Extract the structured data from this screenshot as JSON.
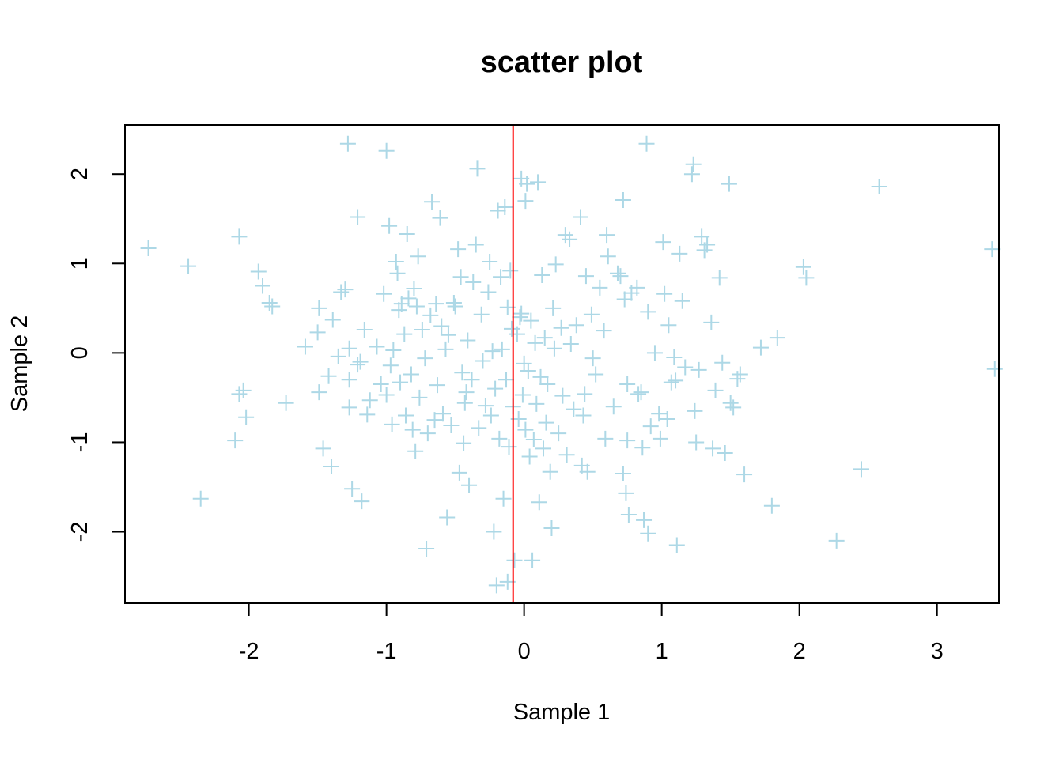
{
  "chart_data": {
    "type": "scatter",
    "title": "scatter plot",
    "xlabel": "Sample 1",
    "ylabel": "Sample 2",
    "xlim": [
      -2.9,
      3.45
    ],
    "ylim": [
      -2.8,
      2.55
    ],
    "x_ticks": [
      -2,
      -1,
      0,
      1,
      2,
      3
    ],
    "x_tick_labels": [
      "-2",
      "-1",
      "0",
      "1",
      "2",
      "3"
    ],
    "y_ticks": [
      -2,
      -1,
      0,
      1,
      2
    ],
    "y_tick_labels": [
      "-2",
      "-1",
      "0",
      "1",
      "2"
    ],
    "marker": "plus",
    "point_color": "#add8e6",
    "vline": {
      "x": -0.08,
      "color": "#ff0000"
    },
    "grid": false,
    "legend": "none",
    "points": [
      [
        -2.73,
        1.17
      ],
      [
        -2.44,
        0.97
      ],
      [
        -2.35,
        -1.63
      ],
      [
        -2.07,
        1.3
      ],
      [
        -2.1,
        -0.98
      ],
      [
        -2.04,
        -0.42
      ],
      [
        -2.07,
        -0.46
      ],
      [
        -2.02,
        -0.72
      ],
      [
        -1.93,
        0.91
      ],
      [
        -1.9,
        0.75
      ],
      [
        -1.85,
        0.56
      ],
      [
        -1.83,
        0.52
      ],
      [
        -1.73,
        -0.56
      ],
      [
        -1.59,
        0.07
      ],
      [
        -1.5,
        0.23
      ],
      [
        -1.49,
        0.5
      ],
      [
        -1.49,
        -0.44
      ],
      [
        -1.46,
        -1.07
      ],
      [
        -1.42,
        -0.26
      ],
      [
        -1.4,
        -1.27
      ],
      [
        -1.39,
        0.37
      ],
      [
        -1.35,
        -0.04
      ],
      [
        -1.33,
        0.68
      ],
      [
        -1.3,
        0.71
      ],
      [
        -1.28,
        2.34
      ],
      [
        -1.27,
        -0.3
      ],
      [
        -1.27,
        0.05
      ],
      [
        -1.27,
        -0.61
      ],
      [
        -1.25,
        -1.52
      ],
      [
        -1.21,
        1.52
      ],
      [
        -1.21,
        -0.13
      ],
      [
        -1.19,
        -0.1
      ],
      [
        -1.18,
        -1.66
      ],
      [
        -1.16,
        0.26
      ],
      [
        -1.14,
        -0.69
      ],
      [
        -1.12,
        -0.53
      ],
      [
        -1.07,
        0.07
      ],
      [
        -1.04,
        -0.35
      ],
      [
        -1.02,
        0.66
      ],
      [
        -1.0,
        -0.47
      ],
      [
        -1.0,
        2.26
      ],
      [
        -0.98,
        1.42
      ],
      [
        -0.97,
        -0.14
      ],
      [
        -0.96,
        -0.8
      ],
      [
        -0.95,
        0.03
      ],
      [
        -0.93,
        1.02
      ],
      [
        -0.92,
        0.89
      ],
      [
        -0.91,
        0.48
      ],
      [
        -0.9,
        -0.33
      ],
      [
        -0.89,
        0.55
      ],
      [
        -0.87,
        0.21
      ],
      [
        -0.86,
        -0.7
      ],
      [
        -0.85,
        1.33
      ],
      [
        -0.84,
        0.61
      ],
      [
        -0.82,
        -0.24
      ],
      [
        -0.81,
        -0.86
      ],
      [
        -0.8,
        0.72
      ],
      [
        -0.79,
        -1.1
      ],
      [
        -0.78,
        0.52
      ],
      [
        -0.77,
        1.08
      ],
      [
        -0.76,
        -0.5
      ],
      [
        -0.74,
        0.26
      ],
      [
        -0.72,
        -0.06
      ],
      [
        -0.71,
        -2.19
      ],
      [
        -0.7,
        -0.9
      ],
      [
        -0.68,
        0.42
      ],
      [
        -0.67,
        1.69
      ],
      [
        -0.65,
        -0.75
      ],
      [
        -0.64,
        0.55
      ],
      [
        -0.63,
        -0.36
      ],
      [
        -0.61,
        1.51
      ],
      [
        -0.6,
        0.3
      ],
      [
        -0.59,
        -0.68
      ],
      [
        -0.57,
        0.04
      ],
      [
        -0.56,
        -1.84
      ],
      [
        -0.55,
        0.2
      ],
      [
        -0.53,
        -0.81
      ],
      [
        -0.51,
        0.56
      ],
      [
        -0.5,
        0.52
      ],
      [
        -0.48,
        1.16
      ],
      [
        -0.47,
        -1.34
      ],
      [
        -0.46,
        0.85
      ],
      [
        -0.45,
        -0.22
      ],
      [
        -0.44,
        -1.01
      ],
      [
        -0.43,
        -0.56
      ],
      [
        -0.42,
        -0.44
      ],
      [
        -0.41,
        0.14
      ],
      [
        -0.4,
        -1.48
      ],
      [
        -0.38,
        -0.3
      ],
      [
        -0.37,
        0.79
      ],
      [
        -0.35,
        1.21
      ],
      [
        -0.34,
        2.06
      ],
      [
        -0.33,
        -0.84
      ],
      [
        -0.31,
        0.43
      ],
      [
        -0.3,
        -0.09
      ],
      [
        -0.28,
        -0.59
      ],
      [
        -0.26,
        0.68
      ],
      [
        -0.25,
        1.02
      ],
      [
        -0.24,
        -0.7
      ],
      [
        -0.23,
        0.02
      ],
      [
        -0.22,
        -2.0
      ],
      [
        -0.21,
        -0.4
      ],
      [
        -0.2,
        -2.6
      ],
      [
        -0.19,
        1.59
      ],
      [
        -0.18,
        -0.96
      ],
      [
        -0.17,
        0.85
      ],
      [
        -0.16,
        0.04
      ],
      [
        -0.15,
        -1.63
      ],
      [
        -0.14,
        1.63
      ],
      [
        -0.13,
        -0.3
      ],
      [
        -0.12,
        -2.56
      ],
      [
        -0.12,
        0.51
      ],
      [
        -0.11,
        -1.05
      ],
      [
        -0.1,
        0.92
      ],
      [
        -0.09,
        0.27
      ],
      [
        -0.08,
        -0.6
      ],
      [
        -0.07,
        -2.32
      ],
      [
        -0.05,
        0.21
      ],
      [
        -0.04,
        -0.74
      ],
      [
        -0.03,
        0.4
      ],
      [
        -0.02,
        1.95
      ],
      [
        -0.02,
        0.44
      ],
      [
        -0.01,
        -0.47
      ],
      [
        0.0,
        -0.12
      ],
      [
        0.01,
        1.7
      ],
      [
        0.01,
        -0.86
      ],
      [
        0.02,
        1.89
      ],
      [
        0.03,
        -0.2
      ],
      [
        0.04,
        -1.16
      ],
      [
        0.05,
        0.36
      ],
      [
        0.06,
        -2.32
      ],
      [
        0.07,
        -0.97
      ],
      [
        0.08,
        0.11
      ],
      [
        0.09,
        -0.57
      ],
      [
        0.1,
        1.91
      ],
      [
        0.11,
        -1.67
      ],
      [
        0.12,
        -0.27
      ],
      [
        0.13,
        0.87
      ],
      [
        0.14,
        -1.07
      ],
      [
        0.15,
        0.17
      ],
      [
        0.16,
        -0.78
      ],
      [
        0.17,
        -0.35
      ],
      [
        0.19,
        -1.33
      ],
      [
        0.2,
        -1.96
      ],
      [
        0.21,
        0.5
      ],
      [
        0.22,
        0.05
      ],
      [
        0.23,
        0.99
      ],
      [
        0.25,
        -0.9
      ],
      [
        0.27,
        0.28
      ],
      [
        0.28,
        -0.48
      ],
      [
        0.3,
        1.32
      ],
      [
        0.31,
        -1.14
      ],
      [
        0.33,
        1.27
      ],
      [
        0.34,
        0.1
      ],
      [
        0.36,
        -0.63
      ],
      [
        0.38,
        0.31
      ],
      [
        0.41,
        1.52
      ],
      [
        0.42,
        -1.26
      ],
      [
        0.43,
        -0.7
      ],
      [
        0.44,
        -0.46
      ],
      [
        0.45,
        0.86
      ],
      [
        0.46,
        -1.33
      ],
      [
        0.49,
        0.43
      ],
      [
        0.5,
        -0.06
      ],
      [
        0.52,
        -0.24
      ],
      [
        0.55,
        0.73
      ],
      [
        0.58,
        0.25
      ],
      [
        0.59,
        -0.96
      ],
      [
        0.6,
        1.32
      ],
      [
        0.61,
        1.08
      ],
      [
        0.65,
        -0.6
      ],
      [
        0.68,
        0.89
      ],
      [
        0.7,
        0.86
      ],
      [
        0.72,
        -1.35
      ],
      [
        0.72,
        1.71
      ],
      [
        0.73,
        0.6
      ],
      [
        0.74,
        -1.57
      ],
      [
        0.75,
        -0.98
      ],
      [
        0.75,
        -0.35
      ],
      [
        0.76,
        -1.81
      ],
      [
        0.78,
        0.67
      ],
      [
        0.82,
        0.73
      ],
      [
        0.83,
        -0.46
      ],
      [
        0.85,
        -0.44
      ],
      [
        0.86,
        -1.06
      ],
      [
        0.87,
        -1.87
      ],
      [
        0.89,
        2.34
      ],
      [
        0.9,
        -2.02
      ],
      [
        0.9,
        0.46
      ],
      [
        0.92,
        -0.82
      ],
      [
        0.95,
        0.0
      ],
      [
        0.98,
        -0.68
      ],
      [
        0.99,
        -0.96
      ],
      [
        1.01,
        1.24
      ],
      [
        1.02,
        0.66
      ],
      [
        1.04,
        -0.74
      ],
      [
        1.05,
        0.31
      ],
      [
        1.07,
        -0.33
      ],
      [
        1.09,
        -0.05
      ],
      [
        1.1,
        -0.31
      ],
      [
        1.11,
        -2.15
      ],
      [
        1.13,
        1.11
      ],
      [
        1.15,
        0.58
      ],
      [
        1.17,
        -0.16
      ],
      [
        1.22,
        2.0
      ],
      [
        1.23,
        2.11
      ],
      [
        1.24,
        -0.65
      ],
      [
        1.25,
        -1.0
      ],
      [
        1.27,
        -0.19
      ],
      [
        1.29,
        1.3
      ],
      [
        1.31,
        1.15
      ],
      [
        1.33,
        1.21
      ],
      [
        1.36,
        0.34
      ],
      [
        1.37,
        -1.07
      ],
      [
        1.39,
        -0.42
      ],
      [
        1.42,
        0.84
      ],
      [
        1.44,
        -0.11
      ],
      [
        1.46,
        -1.12
      ],
      [
        1.49,
        1.89
      ],
      [
        1.5,
        -0.56
      ],
      [
        1.52,
        -0.61
      ],
      [
        1.55,
        -0.29
      ],
      [
        1.57,
        -0.24
      ],
      [
        1.6,
        -1.36
      ],
      [
        1.72,
        0.06
      ],
      [
        1.8,
        -1.71
      ],
      [
        1.84,
        0.17
      ],
      [
        2.03,
        0.96
      ],
      [
        2.05,
        0.84
      ],
      [
        2.27,
        -2.1
      ],
      [
        2.45,
        -1.3
      ],
      [
        2.58,
        1.86
      ],
      [
        3.4,
        1.16
      ],
      [
        3.42,
        -0.18
      ]
    ]
  }
}
